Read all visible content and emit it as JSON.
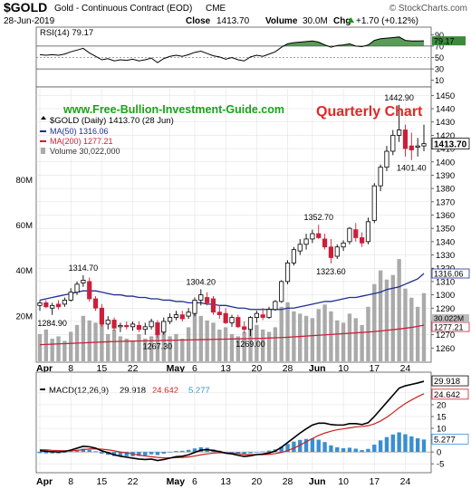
{
  "header": {
    "symbol": "$GOLD",
    "description": "Gold - Continuous Contract (EOD)",
    "exchange": "CME",
    "watermark": "© StockCharts.com",
    "date": "28-Jun-2019",
    "close_label": "Close",
    "close_value": "1413.70",
    "volume_label": "Volume",
    "volume_value": "30.0M",
    "chg_label": "Chg",
    "chg_value": "+1.70 (+0.12%)",
    "chg_icon": "triangle-up-icon"
  },
  "site_url": "www.Free-Bullion-Investment-Guide.com",
  "chart_title": "Quarterly Chart",
  "colors": {
    "up": "#ffffff",
    "down": "#cc1f3a",
    "ma50": "#1f2f8f",
    "ma200": "#cc1f3a",
    "volume": "#aaaaaa",
    "rsi_fill": "#3c8a3c",
    "macd_line": "#000000",
    "signal_line": "#cc1f1f",
    "histogram": "#3a8ed0",
    "site_url": "#18a518",
    "title": "#e02828"
  },
  "chart_data": {
    "type": "candlestick",
    "x_labels": [
      "Apr",
      "8",
      "15",
      "22",
      "May",
      "6",
      "13",
      "20",
      "28",
      "Jun",
      "10",
      "17",
      "24"
    ],
    "x_label_index": [
      0,
      5,
      10,
      15,
      21,
      25,
      30,
      35,
      40,
      44,
      49,
      54,
      59
    ],
    "x_label_bold": [
      true,
      false,
      false,
      false,
      true,
      false,
      false,
      false,
      false,
      true,
      false,
      false,
      false
    ],
    "price_panel": {
      "legend": {
        "price": "$GOLD (Daily) 1413.70 (28 Jun)",
        "ma50": "MA(50) 1316.06",
        "ma200": "MA(200) 1277.21",
        "volume": "Volume 30,022,000"
      },
      "ylim": [
        1250,
        1455
      ],
      "yticks": [
        1260,
        1270,
        1280,
        1290,
        1300,
        1310,
        1320,
        1330,
        1340,
        1350,
        1360,
        1370,
        1380,
        1390,
        1400,
        1410,
        1420,
        1430,
        1440,
        1450
      ],
      "last_tag": "1413.70",
      "ma50_tag": "1316.06",
      "ma200_tag": "1277.21",
      "volume_tag": "30.022M",
      "volume_ticks": [
        "80M",
        "60M",
        "40M",
        "20M"
      ],
      "volume_tick_values": [
        80,
        60,
        40,
        20
      ],
      "volume_scale_max": 120,
      "candles": [
        {
          "o": 1292,
          "h": 1296,
          "l": 1288,
          "c": 1294
        },
        {
          "o": 1294,
          "h": 1296,
          "l": 1290,
          "c": 1291
        },
        {
          "o": 1290,
          "h": 1294,
          "l": 1284.9,
          "c": 1292
        },
        {
          "o": 1293,
          "h": 1296,
          "l": 1289,
          "c": 1291
        },
        {
          "o": 1293,
          "h": 1298,
          "l": 1291,
          "c": 1296
        },
        {
          "o": 1296,
          "h": 1305,
          "l": 1295,
          "c": 1302
        },
        {
          "o": 1302,
          "h": 1310,
          "l": 1300,
          "c": 1308
        },
        {
          "o": 1309,
          "h": 1314.7,
          "l": 1306,
          "c": 1311
        },
        {
          "o": 1310,
          "h": 1313,
          "l": 1295,
          "c": 1297
        },
        {
          "o": 1297,
          "h": 1299,
          "l": 1288,
          "c": 1290
        },
        {
          "o": 1290,
          "h": 1293,
          "l": 1276,
          "c": 1278
        },
        {
          "o": 1278,
          "h": 1284,
          "l": 1274,
          "c": 1281
        },
        {
          "o": 1281,
          "h": 1283,
          "l": 1273,
          "c": 1275
        },
        {
          "o": 1276,
          "h": 1279,
          "l": 1272,
          "c": 1277
        },
        {
          "o": 1277,
          "h": 1280,
          "l": 1274,
          "c": 1276
        },
        {
          "o": 1276,
          "h": 1280,
          "l": 1273,
          "c": 1278
        },
        {
          "o": 1277,
          "h": 1280,
          "l": 1272,
          "c": 1274
        },
        {
          "o": 1274,
          "h": 1279,
          "l": 1270,
          "c": 1276
        },
        {
          "o": 1276,
          "h": 1282,
          "l": 1274,
          "c": 1280
        },
        {
          "o": 1279,
          "h": 1281,
          "l": 1267.3,
          "c": 1270
        },
        {
          "o": 1272,
          "h": 1283,
          "l": 1270,
          "c": 1280
        },
        {
          "o": 1280,
          "h": 1286,
          "l": 1278,
          "c": 1283
        },
        {
          "o": 1283,
          "h": 1288,
          "l": 1281,
          "c": 1285
        },
        {
          "o": 1285,
          "h": 1288,
          "l": 1280,
          "c": 1282
        },
        {
          "o": 1284,
          "h": 1290,
          "l": 1282,
          "c": 1287
        },
        {
          "o": 1286,
          "h": 1298,
          "l": 1284,
          "c": 1296
        },
        {
          "o": 1296,
          "h": 1304.2,
          "l": 1292,
          "c": 1300
        },
        {
          "o": 1298,
          "h": 1302,
          "l": 1292,
          "c": 1294
        },
        {
          "o": 1297,
          "h": 1299,
          "l": 1285,
          "c": 1287
        },
        {
          "o": 1287,
          "h": 1292,
          "l": 1282,
          "c": 1285
        },
        {
          "o": 1286,
          "h": 1290,
          "l": 1278,
          "c": 1279
        },
        {
          "o": 1279,
          "h": 1285,
          "l": 1276,
          "c": 1283
        },
        {
          "o": 1283,
          "h": 1285,
          "l": 1275,
          "c": 1276
        },
        {
          "o": 1276,
          "h": 1280,
          "l": 1271,
          "c": 1274
        },
        {
          "o": 1274,
          "h": 1284,
          "l": 1269,
          "c": 1283
        },
        {
          "o": 1283,
          "h": 1288,
          "l": 1279,
          "c": 1286
        },
        {
          "o": 1285,
          "h": 1290,
          "l": 1281,
          "c": 1283
        },
        {
          "o": 1283,
          "h": 1291,
          "l": 1282,
          "c": 1289
        },
        {
          "o": 1289,
          "h": 1296,
          "l": 1288,
          "c": 1295
        },
        {
          "o": 1295,
          "h": 1311,
          "l": 1294,
          "c": 1310
        },
        {
          "o": 1310,
          "h": 1326,
          "l": 1308,
          "c": 1324
        },
        {
          "o": 1324,
          "h": 1336,
          "l": 1322,
          "c": 1334
        },
        {
          "o": 1333,
          "h": 1342,
          "l": 1330,
          "c": 1338
        },
        {
          "o": 1338,
          "h": 1346,
          "l": 1334,
          "c": 1342
        },
        {
          "o": 1342,
          "h": 1349,
          "l": 1339,
          "c": 1346
        },
        {
          "o": 1346,
          "h": 1352.7,
          "l": 1342,
          "c": 1343
        },
        {
          "o": 1342,
          "h": 1346,
          "l": 1334,
          "c": 1336
        },
        {
          "o": 1336,
          "h": 1342,
          "l": 1323.6,
          "c": 1328
        },
        {
          "o": 1329,
          "h": 1338,
          "l": 1327,
          "c": 1336
        },
        {
          "o": 1336,
          "h": 1341,
          "l": 1333,
          "c": 1339
        },
        {
          "o": 1340,
          "h": 1351,
          "l": 1338,
          "c": 1350
        },
        {
          "o": 1349,
          "h": 1354,
          "l": 1340,
          "c": 1343
        },
        {
          "o": 1343,
          "h": 1347,
          "l": 1336,
          "c": 1339
        },
        {
          "o": 1340,
          "h": 1358,
          "l": 1338,
          "c": 1355
        },
        {
          "o": 1356,
          "h": 1384,
          "l": 1354,
          "c": 1382
        },
        {
          "o": 1382,
          "h": 1398,
          "l": 1378,
          "c": 1396
        },
        {
          "o": 1396,
          "h": 1412,
          "l": 1393,
          "c": 1408
        },
        {
          "o": 1408,
          "h": 1424,
          "l": 1405,
          "c": 1420
        },
        {
          "o": 1420,
          "h": 1442.9,
          "l": 1415,
          "c": 1424
        },
        {
          "o": 1424,
          "h": 1428,
          "l": 1404,
          "c": 1410
        },
        {
          "o": 1412,
          "h": 1422,
          "l": 1401.4,
          "c": 1409
        },
        {
          "o": 1411,
          "h": 1418,
          "l": 1404,
          "c": 1412
        },
        {
          "o": 1412,
          "h": 1428,
          "l": 1408,
          "c": 1413.7
        }
      ],
      "ma50": [
        1296,
        1297,
        1298,
        1299,
        1300,
        1301,
        1302,
        1303,
        1303,
        1303,
        1302,
        1301,
        1300,
        1300,
        1299,
        1299,
        1298,
        1298,
        1297,
        1297,
        1296,
        1296,
        1295,
        1295,
        1294,
        1294,
        1294,
        1293,
        1293,
        1292,
        1292,
        1291,
        1290,
        1290,
        1289,
        1289,
        1289,
        1289,
        1289,
        1289,
        1290,
        1290,
        1291,
        1292,
        1293,
        1294,
        1295,
        1295,
        1296,
        1297,
        1298,
        1298,
        1299,
        1300,
        1301,
        1302,
        1304,
        1305,
        1306,
        1308,
        1310,
        1312,
        1316.06
      ],
      "ma200": [
        1262.5,
        1262.7,
        1262.9,
        1263.1,
        1263.3,
        1263.5,
        1263.7,
        1263.9,
        1264.1,
        1264.3,
        1264.5,
        1264.7,
        1264.9,
        1265,
        1265.1,
        1265.2,
        1265.3,
        1265.4,
        1265.5,
        1265.6,
        1265.7,
        1265.8,
        1265.9,
        1266,
        1266.1,
        1266.2,
        1266.3,
        1266.4,
        1266.5,
        1266.6,
        1266.7,
        1266.8,
        1266.9,
        1267,
        1267.1,
        1267.2,
        1267.3,
        1267.5,
        1267.7,
        1267.9,
        1268.1,
        1268.4,
        1268.7,
        1269,
        1269.3,
        1269.6,
        1269.9,
        1270.2,
        1270.5,
        1270.8,
        1271.1,
        1271.4,
        1271.7,
        1272,
        1272.4,
        1272.8,
        1273.3,
        1273.8,
        1274.3,
        1274.9,
        1275.5,
        1276.3,
        1277.21
      ],
      "volume": [
        12,
        14,
        10,
        11,
        9,
        13,
        16,
        20,
        18,
        17,
        19,
        12,
        14,
        11,
        10,
        9,
        12,
        10,
        11,
        16,
        13,
        11,
        12,
        10,
        15,
        22,
        20,
        18,
        17,
        14,
        15,
        12,
        11,
        13,
        18,
        16,
        14,
        13,
        15,
        24,
        26,
        22,
        21,
        20,
        19,
        23,
        25,
        22,
        18,
        17,
        21,
        19,
        16,
        24,
        34,
        40,
        36,
        38,
        45,
        32,
        28,
        24,
        30.022
      ],
      "annotations": [
        {
          "text": "1314.70",
          "i": 7,
          "value": 1314.7,
          "pos": "above"
        },
        {
          "text": "1284.90",
          "i": 2,
          "value": 1284.9,
          "pos": "below"
        },
        {
          "text": "1304.20",
          "i": 26,
          "value": 1304.2,
          "pos": "above"
        },
        {
          "text": "1267.30",
          "i": 19,
          "value": 1267.3,
          "pos": "below"
        },
        {
          "text": "1269.00",
          "i": 34,
          "value": 1269.0,
          "pos": "below"
        },
        {
          "text": "1352.70",
          "i": 45,
          "value": 1352.7,
          "pos": "above"
        },
        {
          "text": "1323.60",
          "i": 47,
          "value": 1323.6,
          "pos": "below"
        },
        {
          "text": "1442.90",
          "i": 58,
          "value": 1442.9,
          "pos": "above"
        },
        {
          "text": "1401.40",
          "i": 60,
          "value": 1401.4,
          "pos": "below"
        }
      ]
    },
    "rsi_panel": {
      "label": "RSI(14) 79.17",
      "ylim": [
        0,
        100
      ],
      "yticks": [
        90,
        70,
        50,
        30,
        10
      ],
      "overbought": 70,
      "oversold": 30,
      "last_tag": "79.17",
      "values": [
        55,
        54,
        55,
        54,
        56,
        60,
        63,
        66,
        58,
        52,
        46,
        48,
        44,
        46,
        45,
        47,
        44,
        46,
        49,
        41,
        48,
        52,
        54,
        52,
        55,
        59,
        61,
        57,
        53,
        51,
        47,
        50,
        46,
        44,
        51,
        54,
        52,
        56,
        60,
        68,
        74,
        76,
        77,
        78,
        79,
        77,
        72,
        68,
        71,
        72,
        74,
        70,
        69,
        72,
        80,
        83,
        84,
        85,
        86,
        80,
        79,
        79,
        79.17
      ]
    },
    "macd_panel": {
      "label": "MACD(12,26,9) 29.918, 24.642, 5.277",
      "label_parts": {
        "name": "MACD(12,26,9)",
        "macd": "29.918",
        "signal": "24.642",
        "hist": "5.277"
      },
      "ylim": [
        -8,
        33
      ],
      "yticks": [
        25,
        20,
        15,
        10,
        5,
        0,
        -5
      ],
      "tick_labels": [
        "25",
        "20",
        "15",
        "10",
        "5",
        "0",
        "-5"
      ],
      "macd_tag": "29.918",
      "signal_tag": "24.642",
      "hist_tag": "5.277",
      "macd": [
        0.5,
        0.3,
        0.1,
        0,
        0.2,
        0.8,
        1.6,
        2.4,
        2.2,
        1.6,
        0.5,
        -0.3,
        -1.2,
        -1.8,
        -2.2,
        -2.6,
        -3,
        -3.2,
        -3,
        -3.6,
        -3.2,
        -2.6,
        -2,
        -1.8,
        -1.2,
        -0.2,
        0.8,
        1,
        0.6,
        0.2,
        -0.5,
        -0.8,
        -1.4,
        -1.9,
        -1.6,
        -1.1,
        -0.9,
        -0.4,
        0.4,
        2,
        4,
        6,
        8,
        9.8,
        11.4,
        12.2,
        12.2,
        11.6,
        11.4,
        11.4,
        12,
        12,
        11.6,
        12.4,
        15,
        18,
        21,
        24,
        27,
        28,
        28.6,
        29.2,
        29.918
      ],
      "signal": [
        1,
        0.9,
        0.7,
        0.6,
        0.5,
        0.5,
        0.7,
        1,
        1.3,
        1.3,
        1.2,
        0.9,
        0.5,
        0,
        -0.4,
        -0.8,
        -1.3,
        -1.7,
        -2,
        -2.3,
        -2.5,
        -2.5,
        -2.4,
        -2.3,
        -2.1,
        -1.7,
        -1.2,
        -0.8,
        -0.5,
        -0.3,
        -0.4,
        -0.5,
        -0.7,
        -1,
        -1.1,
        -1.1,
        -1.1,
        -1,
        -0.7,
        -0.2,
        0.6,
        1.6,
        2.9,
        4.3,
        5.7,
        7,
        8,
        8.8,
        9.4,
        9.8,
        10.2,
        10.6,
        10.8,
        11.1,
        11.9,
        13.1,
        14.7,
        16.6,
        18.7,
        20.5,
        22,
        23.4,
        24.642
      ]
    }
  }
}
